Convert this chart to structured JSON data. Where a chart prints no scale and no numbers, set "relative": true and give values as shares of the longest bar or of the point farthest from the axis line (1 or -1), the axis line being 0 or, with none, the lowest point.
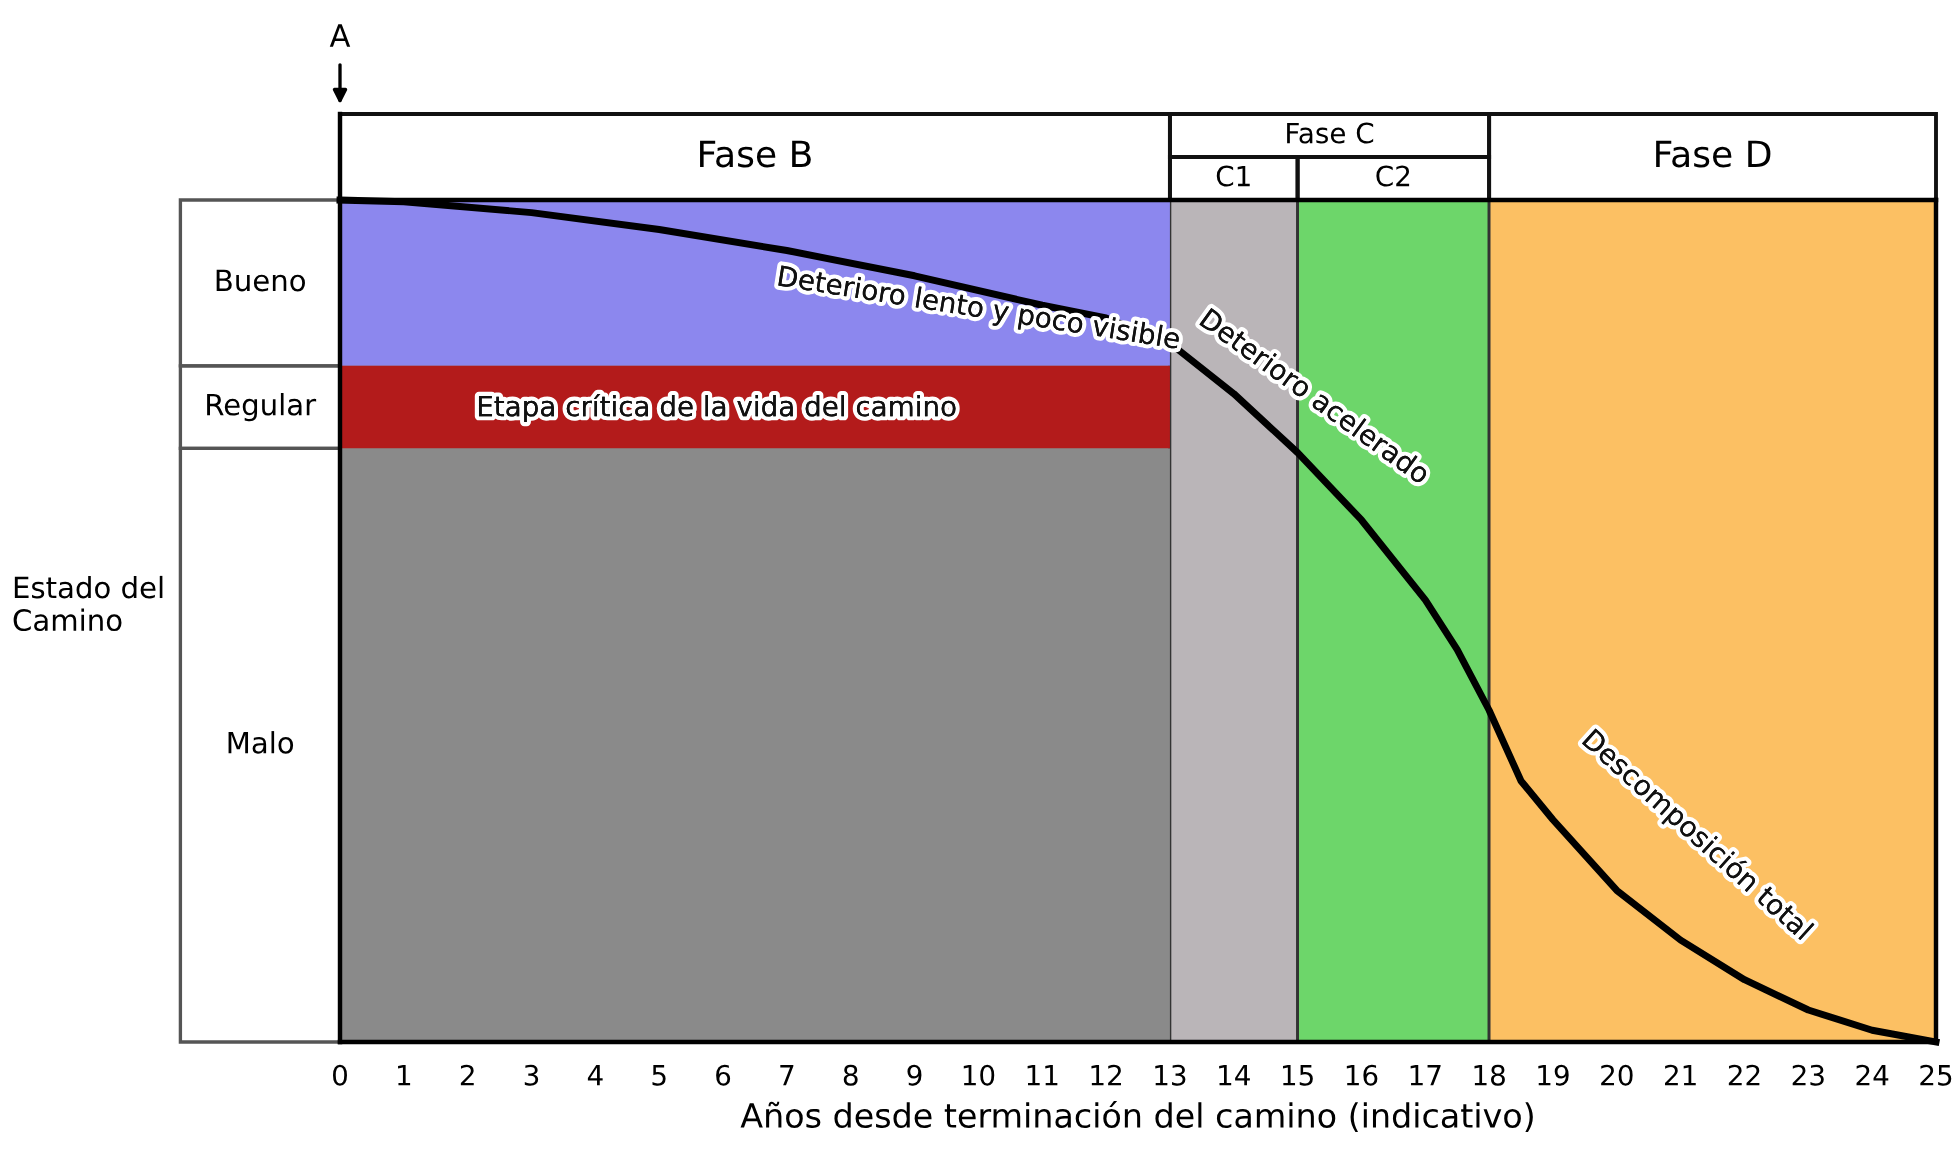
{
  "chart_data": {
    "type": "line",
    "relative": true,
    "xlabel": "Años desde terminación del camino (indicativo)",
    "xlim": [
      0,
      25
    ],
    "xticks": [
      0,
      1,
      2,
      3,
      4,
      5,
      6,
      7,
      8,
      9,
      10,
      11,
      12,
      13,
      14,
      15,
      16,
      17,
      18,
      19,
      20,
      21,
      22,
      23,
      24,
      25
    ],
    "series": [
      {
        "color": "#000000",
        "x": [
          0,
          1,
          3,
          5,
          7,
          9,
          11,
          12,
          13,
          14,
          15,
          16,
          17,
          17.5,
          18,
          18.5,
          19,
          20,
          21,
          22,
          23,
          24,
          25
        ],
        "values": [
          1.0,
          0.998,
          0.985,
          0.965,
          0.94,
          0.91,
          0.875,
          0.86,
          0.83,
          0.77,
          0.7,
          0.62,
          0.525,
          0.466,
          0.394,
          0.31,
          0.264,
          0.18,
          0.121,
          0.074,
          0.038,
          0.014,
          0
        ]
      }
    ],
    "bands": [
      {
        "axis": "x",
        "from": 0,
        "to": 13,
        "label": "Fase B",
        "color": "#8a8a8a"
      },
      {
        "axis": "x",
        "from": 13,
        "to": 15,
        "label": "C1",
        "color": "#bab5b8"
      },
      {
        "axis": "x",
        "from": 15,
        "to": 18,
        "label": "C2",
        "color": "#6dd66a"
      },
      {
        "axis": "x",
        "from": 18,
        "to": 25,
        "label": "Fase D",
        "color": "#fcc063"
      },
      {
        "axis": "y",
        "from": 0.803,
        "to": 1,
        "label": "Bueno",
        "color": "#8c87ee"
      },
      {
        "axis": "y",
        "from": 0.705,
        "to": 0.803,
        "label": "Regular",
        "color": "#b31b1b"
      },
      {
        "axis": "y",
        "from": 0,
        "to": 0.705,
        "label": "Malo",
        "color": "#8a8a8a"
      }
    ],
    "annotations": [
      "A",
      "Fase C",
      "Deterioro lento y poco visible",
      "Etapa crítica de la vida del camino",
      "Deterioro acelerado",
      "Descomposición total",
      "Estado del Camino"
    ]
  }
}
